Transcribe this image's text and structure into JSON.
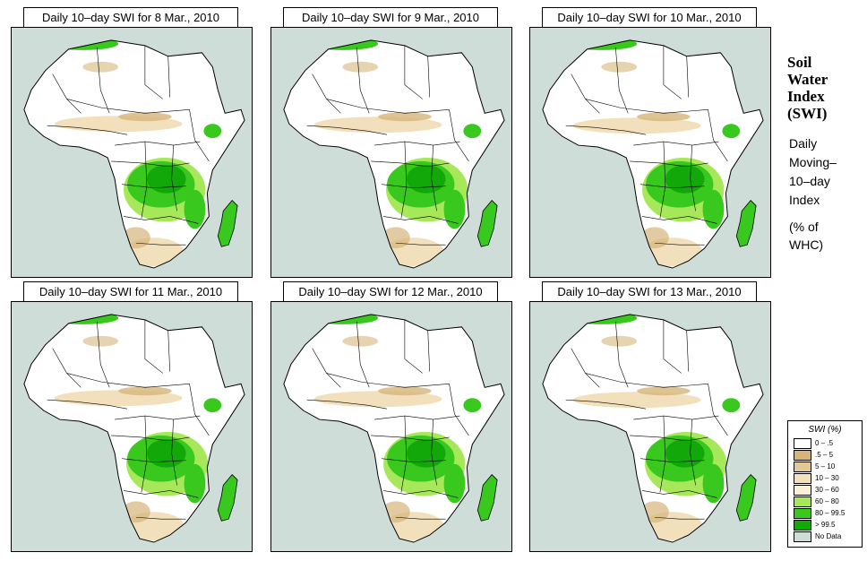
{
  "panels": [
    {
      "title": "Daily 10–day SWI for  8 Mar., 2010"
    },
    {
      "title": "Daily 10–day SWI for  9 Mar., 2010"
    },
    {
      "title": "Daily 10–day SWI for  10 Mar., 2010"
    },
    {
      "title": "Daily 10–day SWI for  11 Mar., 2010"
    },
    {
      "title": "Daily 10–day SWI for  12 Mar., 2010"
    },
    {
      "title": "Daily 10–day SWI for  13 Mar., 2010"
    }
  ],
  "side": {
    "title_lines": [
      "Soil",
      "Water",
      "Index",
      "(SWI)"
    ],
    "desc_lines": [
      "Daily",
      "Moving–",
      "10–day",
      "Index"
    ],
    "unit_lines": [
      "(% of",
      " WHC)"
    ]
  },
  "legend": {
    "title": "SWI (%)",
    "items": [
      {
        "label": "0 – .5",
        "color": "#ffffff"
      },
      {
        "label": ".5 – 5",
        "color": "#d6b57a"
      },
      {
        "label": "5 – 10",
        "color": "#e4c896"
      },
      {
        "label": "10 – 30",
        "color": "#f2e0bc"
      },
      {
        "label": "30 – 60",
        "color": "#f9f1d6"
      },
      {
        "label": "60 – 80",
        "color": "#a6e85a"
      },
      {
        "label": "80 – 99.5",
        "color": "#39c81e"
      },
      {
        "label": "> 99.5",
        "color": "#12a80a"
      },
      {
        "label": "No Data",
        "color": "#cfddd8"
      }
    ]
  },
  "colors": {
    "ocean": "#cfddd8",
    "land": "#ffffff",
    "border": "#000000",
    "wet": "#39c81e",
    "very_wet": "#12a80a",
    "moist": "#a6e85a",
    "dry": "#d6b57a",
    "semi_dry": "#f2e0bc"
  }
}
